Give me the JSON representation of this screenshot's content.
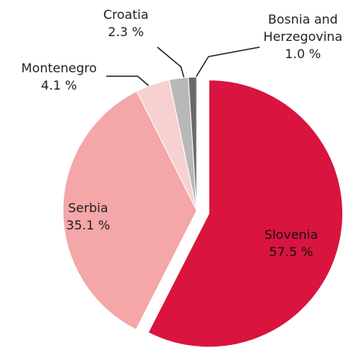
{
  "chart_data": {
    "type": "pie",
    "categories": [
      "Slovenia",
      "Serbia",
      "Montenegro",
      "Croatia",
      "Bosnia and Herzegovina"
    ],
    "values": [
      57.5,
      35.1,
      4.1,
      2.3,
      1.0
    ],
    "value_labels": [
      "57.5 %",
      "35.1 %",
      "4.1 %",
      "2.3 %",
      "1.0 %"
    ],
    "colors": [
      "#d9143f",
      "#f4a6a8",
      "#f7d0d1",
      "#b8b8b8",
      "#6a6a6a"
    ]
  }
}
